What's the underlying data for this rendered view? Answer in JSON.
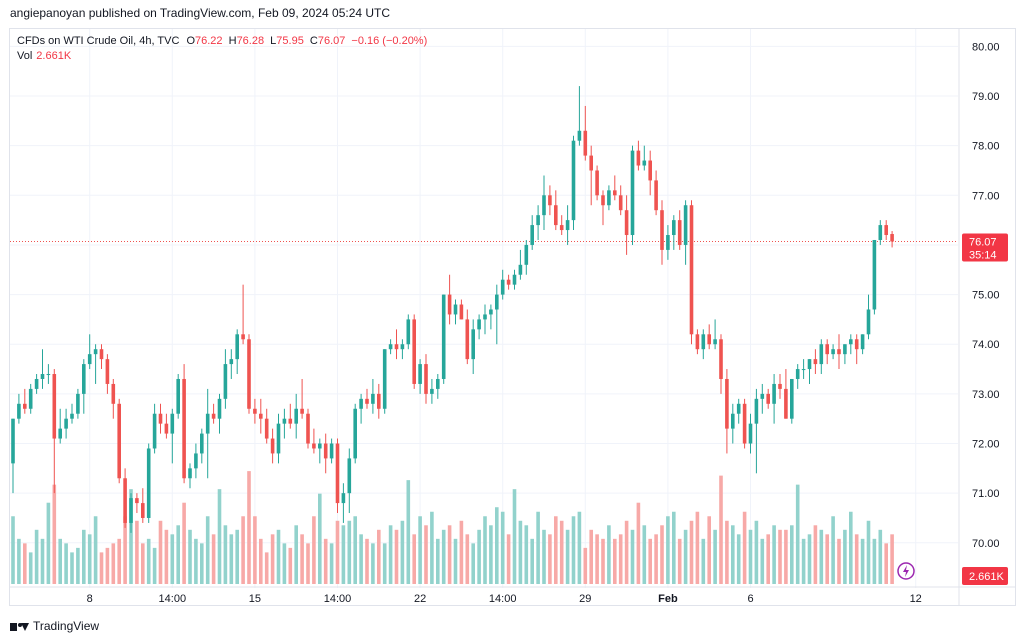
{
  "publisher": "angiepanoyan published on TradingView.com, Feb 09, 2024 05:24 UTC",
  "legend": {
    "symbol": "CFDs on WTI Crude Oil, 4h, TVC",
    "o_label": "O",
    "o_value": "76.22",
    "h_label": "H",
    "h_value": "76.28",
    "l_label": "L",
    "l_value": "75.95",
    "c_label": "C",
    "c_value": "76.07",
    "change": "−0.16 (−0.20%)",
    "vol_label": "Vol",
    "vol_value": "2.661K"
  },
  "footer": {
    "brand": "TradingView"
  },
  "colors": {
    "up": "#26a69a",
    "down": "#ef5350",
    "vol_up": "#92d2cc",
    "vol_down": "#f7a9a7",
    "grid": "#f0f3fa",
    "label_bg": "#f23645"
  },
  "chart_data": {
    "type": "candlestick",
    "y_ticks": [
      "80.00",
      "79.00",
      "78.00",
      "77.00",
      "76.00",
      "75.00",
      "74.00",
      "73.00",
      "72.00",
      "71.00",
      "70.00"
    ],
    "x_ticks": [
      {
        "label": "8",
        "index": 13,
        "bold": false
      },
      {
        "label": "14:00",
        "index": 27,
        "bold": false
      },
      {
        "label": "15",
        "index": 41,
        "bold": false
      },
      {
        "label": "14:00",
        "index": 55,
        "bold": false
      },
      {
        "label": "22",
        "index": 69,
        "bold": false
      },
      {
        "label": "14:00",
        "index": 83,
        "bold": false
      },
      {
        "label": "29",
        "index": 97,
        "bold": false
      },
      {
        "label": "Feb",
        "index": 111,
        "bold": true
      },
      {
        "label": "6",
        "index": 125,
        "bold": false
      },
      {
        "label": "12",
        "index": 153,
        "bold": false
      }
    ],
    "ylim": [
      69.15,
      80.35
    ],
    "last_price": "76.07",
    "countdown": "35:14",
    "last_volume": "2.661K",
    "candles": [
      [
        71.6,
        72.5,
        71.0,
        72.5
      ],
      [
        72.5,
        73.0,
        72.4,
        72.8
      ],
      [
        72.8,
        73.1,
        72.6,
        72.7
      ],
      [
        72.7,
        73.2,
        72.6,
        73.1
      ],
      [
        73.1,
        73.4,
        73.0,
        73.3
      ],
      [
        73.3,
        73.9,
        73.1,
        73.4
      ],
      [
        73.4,
        73.6,
        73.2,
        73.4
      ],
      [
        73.4,
        73.5,
        71.0,
        72.1
      ],
      [
        72.1,
        72.7,
        72.0,
        72.3
      ],
      [
        72.3,
        72.7,
        72.1,
        72.5
      ],
      [
        72.5,
        72.8,
        72.4,
        72.6
      ],
      [
        72.6,
        73.1,
        72.5,
        73.0
      ],
      [
        73.0,
        73.7,
        72.6,
        73.6
      ],
      [
        73.6,
        74.2,
        73.5,
        73.8
      ],
      [
        73.8,
        74.0,
        73.2,
        73.9
      ],
      [
        73.9,
        74.0,
        73.5,
        73.7
      ],
      [
        73.7,
        73.8,
        73.0,
        73.2
      ],
      [
        73.2,
        73.3,
        72.5,
        72.8
      ],
      [
        72.8,
        72.9,
        71.2,
        71.3
      ],
      [
        71.3,
        71.5,
        70.3,
        70.4
      ],
      [
        70.4,
        71.0,
        70.2,
        70.9
      ],
      [
        70.9,
        71.0,
        70.6,
        70.8
      ],
      [
        70.8,
        71.1,
        70.4,
        70.5
      ],
      [
        70.5,
        72.0,
        70.4,
        71.9
      ],
      [
        71.9,
        72.8,
        71.8,
        72.6
      ],
      [
        72.6,
        72.8,
        72.2,
        72.4
      ],
      [
        72.4,
        72.6,
        72.1,
        72.2
      ],
      [
        72.2,
        72.7,
        71.6,
        72.6
      ],
      [
        72.6,
        73.4,
        72.5,
        73.3
      ],
      [
        73.3,
        73.6,
        71.2,
        71.3
      ],
      [
        71.3,
        71.6,
        71.1,
        71.5
      ],
      [
        71.5,
        72.0,
        71.3,
        71.8
      ],
      [
        71.8,
        72.3,
        71.6,
        72.2
      ],
      [
        72.2,
        73.1,
        71.3,
        72.6
      ],
      [
        72.6,
        72.8,
        72.4,
        72.5
      ],
      [
        72.5,
        73.0,
        72.2,
        72.9
      ],
      [
        72.9,
        73.9,
        72.7,
        73.6
      ],
      [
        73.6,
        73.9,
        73.3,
        73.7
      ],
      [
        73.7,
        74.3,
        73.4,
        74.2
      ],
      [
        74.2,
        75.2,
        74.0,
        74.1
      ],
      [
        74.1,
        74.2,
        72.6,
        72.7
      ],
      [
        72.7,
        72.9,
        72.4,
        72.6
      ],
      [
        72.6,
        72.9,
        72.2,
        72.5
      ],
      [
        72.5,
        72.7,
        72.0,
        72.1
      ],
      [
        72.1,
        72.3,
        71.6,
        71.8
      ],
      [
        71.8,
        72.6,
        71.6,
        72.4
      ],
      [
        72.4,
        72.7,
        72.1,
        72.5
      ],
      [
        72.5,
        72.8,
        72.3,
        72.4
      ],
      [
        72.4,
        73.0,
        72.1,
        72.7
      ],
      [
        72.7,
        73.3,
        72.5,
        72.6
      ],
      [
        72.6,
        72.7,
        71.9,
        72.0
      ],
      [
        72.0,
        72.3,
        71.8,
        71.9
      ],
      [
        71.9,
        72.1,
        71.6,
        72.0
      ],
      [
        72.0,
        72.2,
        71.4,
        71.7
      ],
      [
        71.7,
        72.1,
        71.6,
        72.0
      ],
      [
        72.0,
        72.1,
        70.6,
        70.8
      ],
      [
        70.8,
        71.2,
        70.4,
        71.0
      ],
      [
        71.0,
        71.9,
        70.6,
        71.7
      ],
      [
        71.7,
        72.8,
        71.6,
        72.7
      ],
      [
        72.7,
        73.0,
        72.4,
        72.9
      ],
      [
        72.9,
        73.1,
        72.7,
        72.8
      ],
      [
        72.8,
        73.3,
        72.6,
        73.0
      ],
      [
        73.0,
        73.2,
        72.5,
        72.7
      ],
      [
        72.7,
        73.9,
        72.6,
        73.9
      ],
      [
        73.9,
        74.1,
        73.8,
        74.0
      ],
      [
        74.0,
        74.3,
        73.7,
        73.9
      ],
      [
        73.9,
        74.1,
        73.7,
        74.0
      ],
      [
        74.0,
        74.6,
        73.9,
        74.5
      ],
      [
        74.5,
        74.6,
        73.1,
        73.2
      ],
      [
        73.2,
        73.7,
        73.0,
        73.6
      ],
      [
        73.6,
        73.8,
        72.8,
        73.0
      ],
      [
        73.0,
        73.3,
        72.8,
        73.1
      ],
      [
        73.1,
        73.4,
        72.9,
        73.3
      ],
      [
        73.3,
        75.0,
        73.2,
        75.0
      ],
      [
        75.0,
        75.4,
        74.4,
        74.6
      ],
      [
        74.6,
        74.9,
        74.4,
        74.8
      ],
      [
        74.8,
        74.9,
        74.5,
        74.5
      ],
      [
        74.5,
        74.7,
        73.6,
        73.7
      ],
      [
        73.7,
        74.5,
        73.4,
        74.3
      ],
      [
        74.3,
        74.6,
        74.1,
        74.5
      ],
      [
        74.5,
        74.8,
        74.2,
        74.6
      ],
      [
        74.6,
        74.8,
        74.3,
        74.7
      ],
      [
        74.7,
        75.2,
        74.0,
        75.0
      ],
      [
        75.0,
        75.5,
        74.9,
        75.3
      ],
      [
        75.3,
        75.4,
        75.1,
        75.2
      ],
      [
        75.2,
        75.5,
        75.1,
        75.4
      ],
      [
        75.4,
        75.9,
        75.3,
        75.6
      ],
      [
        75.6,
        76.1,
        75.4,
        76.0
      ],
      [
        76.0,
        76.6,
        75.9,
        76.4
      ],
      [
        76.4,
        76.8,
        76.1,
        76.6
      ],
      [
        76.6,
        77.4,
        76.3,
        77.0
      ],
      [
        77.0,
        77.2,
        76.6,
        76.8
      ],
      [
        76.8,
        77.1,
        76.3,
        76.4
      ],
      [
        76.4,
        76.6,
        76.2,
        76.3
      ],
      [
        76.3,
        76.8,
        76.0,
        76.5
      ],
      [
        76.5,
        78.2,
        76.3,
        78.1
      ],
      [
        78.1,
        79.2,
        78.0,
        78.3
      ],
      [
        78.3,
        78.8,
        77.7,
        77.8
      ],
      [
        77.8,
        78.0,
        76.8,
        77.5
      ],
      [
        77.5,
        77.6,
        76.9,
        77.0
      ],
      [
        77.0,
        77.1,
        76.4,
        76.8
      ],
      [
        76.8,
        77.2,
        76.7,
        77.1
      ],
      [
        77.1,
        77.4,
        76.9,
        77.0
      ],
      [
        77.0,
        77.2,
        76.6,
        76.7
      ],
      [
        76.7,
        77.0,
        75.8,
        76.2
      ],
      [
        76.2,
        78.0,
        76.0,
        77.9
      ],
      [
        77.9,
        78.1,
        77.5,
        77.6
      ],
      [
        77.6,
        78.0,
        77.5,
        77.7
      ],
      [
        77.7,
        77.9,
        77.0,
        77.3
      ],
      [
        77.3,
        77.5,
        76.6,
        76.7
      ],
      [
        76.7,
        76.9,
        75.6,
        75.9
      ],
      [
        75.9,
        76.4,
        75.7,
        76.2
      ],
      [
        76.2,
        76.6,
        75.9,
        76.5
      ],
      [
        76.5,
        76.7,
        75.9,
        76.0
      ],
      [
        76.0,
        76.9,
        75.6,
        76.8
      ],
      [
        76.8,
        76.9,
        74.0,
        74.2
      ],
      [
        74.2,
        74.3,
        73.8,
        73.9
      ],
      [
        73.9,
        74.3,
        73.7,
        74.2
      ],
      [
        74.2,
        74.4,
        73.9,
        74.0
      ],
      [
        74.0,
        74.5,
        73.9,
        74.1
      ],
      [
        74.1,
        74.2,
        73.0,
        73.3
      ],
      [
        73.3,
        73.5,
        71.8,
        72.3
      ],
      [
        72.3,
        72.8,
        72.0,
        72.6
      ],
      [
        72.6,
        72.9,
        72.4,
        72.8
      ],
      [
        72.8,
        72.9,
        71.9,
        72.0
      ],
      [
        72.0,
        72.6,
        71.8,
        72.4
      ],
      [
        72.4,
        73.1,
        71.4,
        72.9
      ],
      [
        72.9,
        73.2,
        72.6,
        73.0
      ],
      [
        73.0,
        73.1,
        72.7,
        72.8
      ],
      [
        72.8,
        73.4,
        72.4,
        73.2
      ],
      [
        73.2,
        73.4,
        72.9,
        73.1
      ],
      [
        73.1,
        73.5,
        72.5,
        72.5
      ],
      [
        72.5,
        73.3,
        72.4,
        73.3
      ],
      [
        73.3,
        73.6,
        73.1,
        73.5
      ],
      [
        73.5,
        73.7,
        73.3,
        73.5
      ],
      [
        73.5,
        73.7,
        73.2,
        73.7
      ],
      [
        73.7,
        73.9,
        73.4,
        73.6
      ],
      [
        73.6,
        74.1,
        73.4,
        74.0
      ],
      [
        74.0,
        74.1,
        73.6,
        73.8
      ],
      [
        73.8,
        74.0,
        73.7,
        73.9
      ],
      [
        73.9,
        74.2,
        73.5,
        73.8
      ],
      [
        73.8,
        74.0,
        73.6,
        74.0
      ],
      [
        74.0,
        74.2,
        73.8,
        74.1
      ],
      [
        74.1,
        74.2,
        73.6,
        73.9
      ],
      [
        73.9,
        74.2,
        73.8,
        74.2
      ],
      [
        74.2,
        75.0,
        74.1,
        74.7
      ],
      [
        74.7,
        76.1,
        74.6,
        76.1
      ],
      [
        76.1,
        76.5,
        76.0,
        76.4
      ],
      [
        76.4,
        76.5,
        76.1,
        76.2
      ],
      [
        76.22,
        76.28,
        75.95,
        76.07
      ]
    ],
    "volume": [
      1.5,
      1.0,
      0.9,
      0.7,
      1.2,
      1.0,
      1.8,
      2.2,
      1.0,
      0.9,
      0.7,
      0.8,
      1.2,
      1.1,
      1.5,
      0.7,
      0.8,
      0.9,
      1.0,
      1.5,
      2.1,
      1.4,
      0.9,
      1.0,
      0.8,
      1.4,
      1.2,
      1.1,
      1.3,
      1.8,
      1.2,
      1.0,
      0.9,
      1.5,
      1.1,
      2.1,
      1.3,
      1.1,
      1.2,
      1.5,
      2.5,
      1.5,
      1.0,
      0.7,
      1.1,
      1.2,
      0.9,
      0.8,
      1.3,
      1.1,
      0.9,
      1.5,
      2.0,
      1.0,
      0.9,
      1.4,
      1.3,
      1.4,
      1.5,
      1.1,
      1.0,
      0.9,
      1.2,
      0.9,
      1.3,
      1.2,
      1.4,
      2.3,
      1.1,
      1.5,
      1.3,
      1.6,
      1.0,
      1.2,
      1.3,
      1.0,
      1.4,
      1.1,
      0.9,
      1.2,
      1.5,
      1.3,
      1.7,
      1.6,
      1.1,
      2.1,
      1.4,
      1.3,
      1.0,
      1.6,
      1.2,
      1.1,
      1.5,
      1.4,
      1.2,
      1.5,
      1.6,
      0.8,
      1.2,
      1.1,
      1.0,
      1.3,
      1.0,
      1.1,
      1.4,
      1.2,
      1.8,
      1.3,
      1.0,
      1.1,
      1.3,
      1.5,
      1.6,
      1.0,
      1.2,
      1.4,
      1.6,
      1.0,
      1.5,
      1.2,
      2.4,
      1.4,
      1.3,
      1.1,
      1.6,
      1.2,
      1.4,
      1.0,
      1.1,
      1.3,
      1.2,
      1.2,
      1.3,
      2.2,
      1.0,
      1.1,
      1.3,
      1.2,
      1.1,
      1.5,
      1.0,
      1.2,
      1.6,
      1.1,
      1.0,
      1.4,
      1.0,
      1.2,
      0.9,
      1.1
    ]
  }
}
